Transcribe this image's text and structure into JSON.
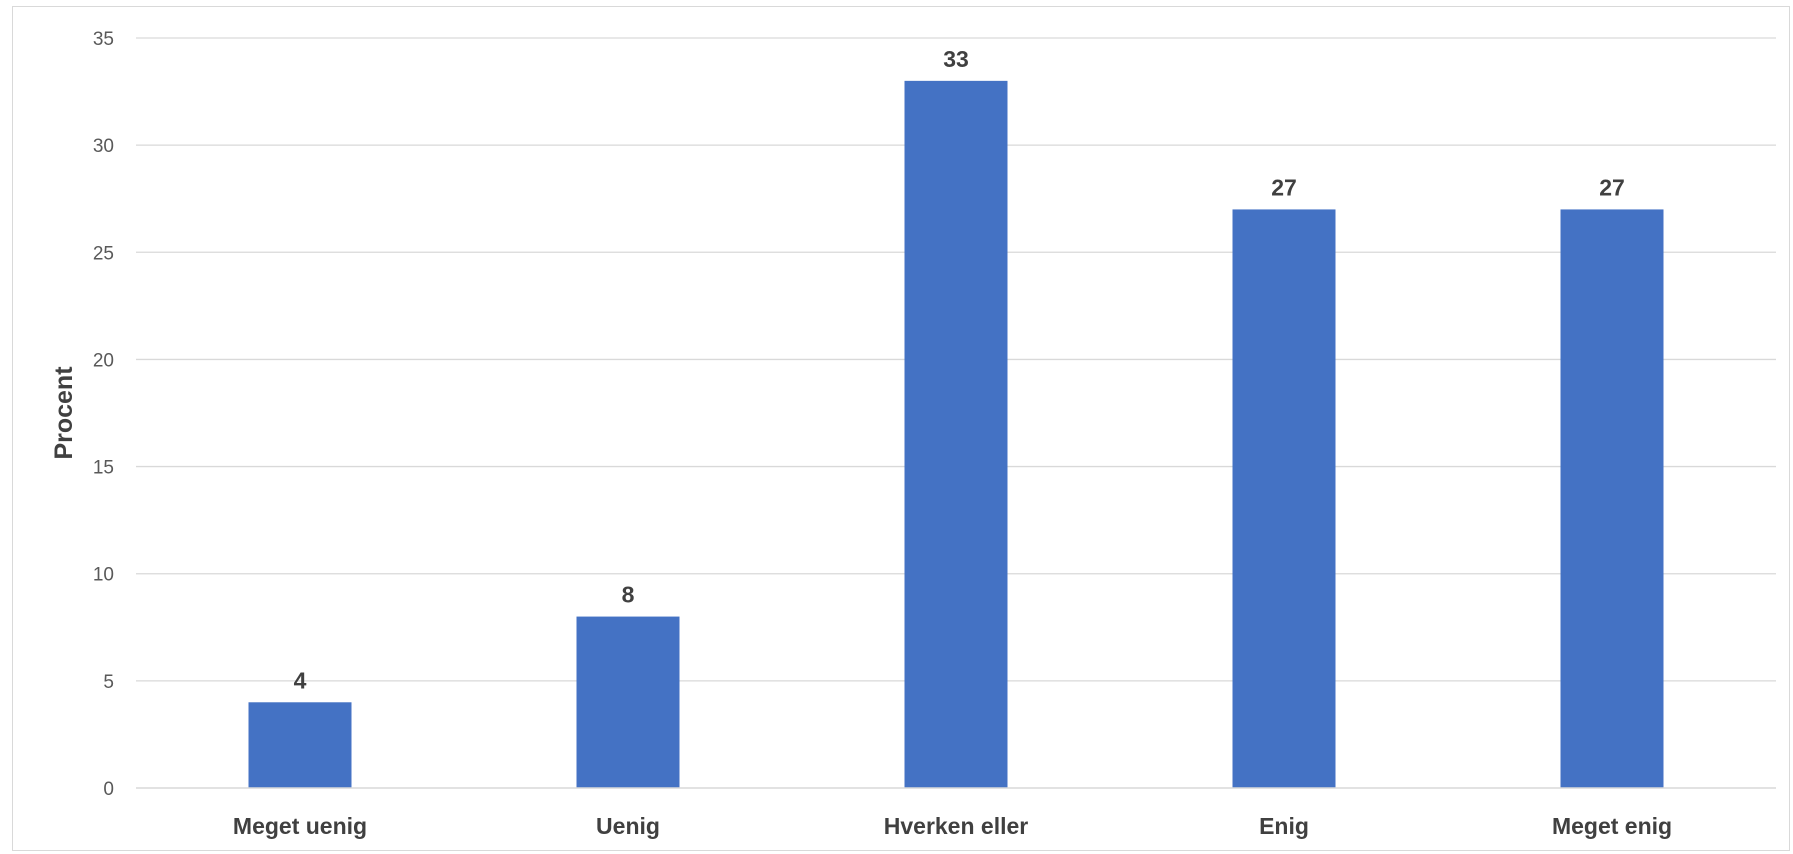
{
  "chart_data": {
    "type": "bar",
    "title": "",
    "xlabel": "",
    "ylabel": "Procent",
    "categories": [
      "Meget uenig",
      "Uenig",
      "Hverken eller",
      "Enig",
      "Meget enig"
    ],
    "values": [
      4,
      8,
      33,
      27,
      27
    ],
    "data_labels": [
      "4",
      "8",
      "33",
      "27",
      "27"
    ],
    "ylim": [
      0,
      35
    ],
    "yticks": [
      0,
      5,
      10,
      15,
      20,
      25,
      30,
      35
    ],
    "grid": true,
    "legend": "none",
    "bar_color": "#4472C4",
    "gridline_color": "#d9d9d9"
  }
}
